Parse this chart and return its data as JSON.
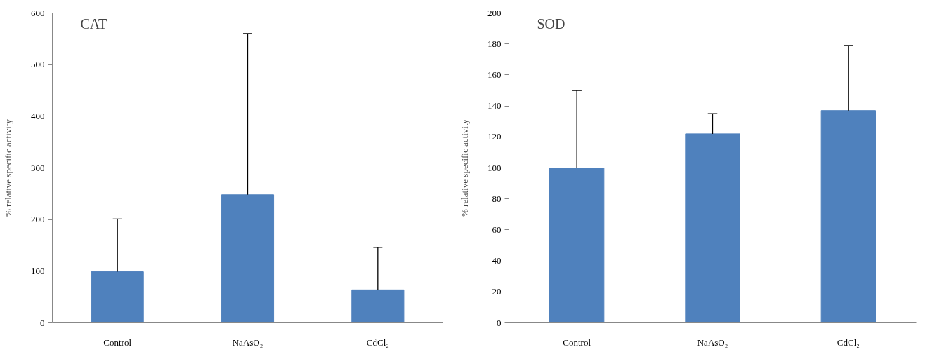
{
  "chart_data": [
    {
      "type": "bar",
      "title": "CAT",
      "ylabel": "% relative specific activity",
      "categories": [
        "Control",
        "NaAsO₂",
        "CdCl₂"
      ],
      "values": [
        99,
        248,
        64
      ],
      "errors": [
        [
          99,
          201
        ],
        [
          248,
          560
        ],
        [
          64,
          146
        ]
      ],
      "color": "#4f81bd",
      "ylim": [
        0,
        600
      ],
      "yticks": [
        0,
        100,
        200,
        300,
        400,
        500,
        600
      ],
      "grid": false
    },
    {
      "type": "bar",
      "title": "SOD",
      "ylabel": "% relative specific activity",
      "categories": [
        "Control",
        "NaAsO₂",
        "CdCl₂"
      ],
      "values": [
        100,
        122,
        137
      ],
      "errors": [
        [
          100,
          150
        ],
        [
          122,
          135
        ],
        [
          137,
          179
        ]
      ],
      "color": "#4f81bd",
      "ylim": [
        0,
        200
      ],
      "yticks": [
        0,
        20,
        40,
        60,
        80,
        100,
        120,
        140,
        160,
        180,
        200
      ],
      "grid": false
    }
  ]
}
